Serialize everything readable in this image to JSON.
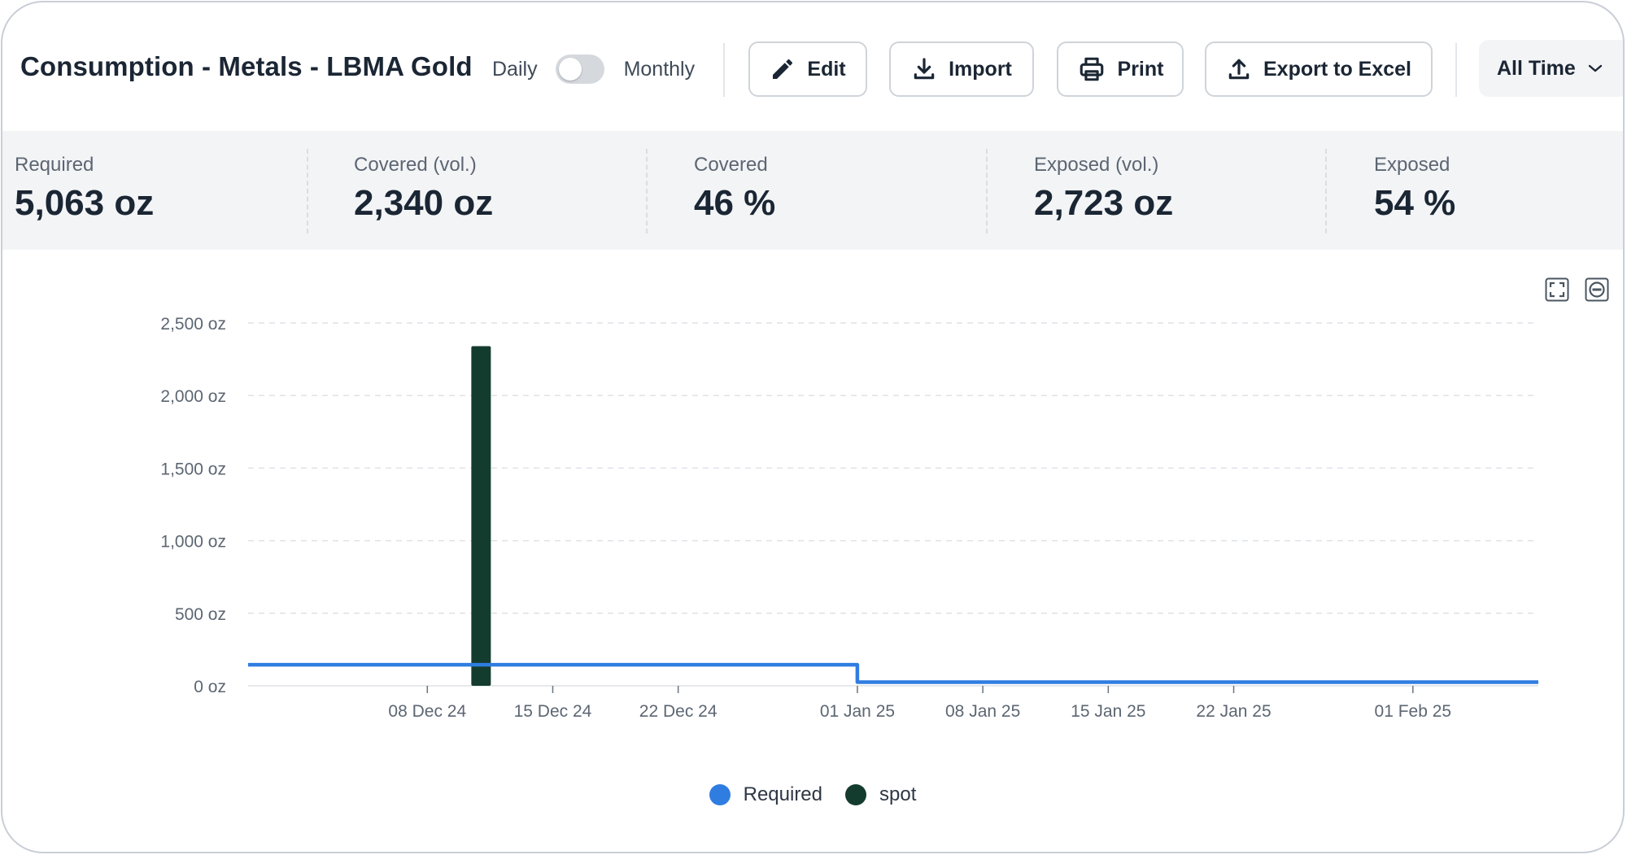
{
  "header": {
    "title": "Consumption - Metals - LBMA Gold",
    "toggle": {
      "left_label": "Daily",
      "right_label": "Monthly",
      "selected": "Daily"
    },
    "buttons": {
      "edit": "Edit",
      "import": "Import",
      "print": "Print",
      "export": "Export to Excel"
    },
    "range": {
      "selected": "All Time"
    }
  },
  "stats": [
    {
      "label": "Required",
      "value": "5,063 oz"
    },
    {
      "label": "Covered (vol.)",
      "value": "2,340 oz"
    },
    {
      "label": "Covered",
      "value": "46 %"
    },
    {
      "label": "Exposed (vol.)",
      "value": "2,723 oz"
    },
    {
      "label": "Exposed",
      "value": "54 %"
    }
  ],
  "icons": {
    "edit": "pencil-icon",
    "import": "download-icon",
    "print": "printer-icon",
    "export": "upload-icon",
    "range": "chevron-down-icon",
    "chart_fullscreen": "fullscreen-icon",
    "chart_reset": "zoom-reset-icon"
  },
  "colors": {
    "required": "#2f7de1",
    "spot": "#143c2e"
  },
  "chart_data": {
    "type": "line",
    "ylim": [
      0,
      2500
    ],
    "y_ticks": [
      0,
      500,
      1000,
      1500,
      2000,
      2500
    ],
    "y_tick_labels": [
      "0 oz",
      "500 oz",
      "1,000 oz",
      "1,500 oz",
      "2,000 oz",
      "2,500 oz"
    ],
    "x_range": [
      "2024-11-28",
      "2025-02-08"
    ],
    "x_ticks": [
      "2024-12-08",
      "2024-12-15",
      "2024-12-22",
      "2025-01-01",
      "2025-01-08",
      "2025-01-15",
      "2025-01-22",
      "2025-02-01"
    ],
    "x_tick_labels": [
      "08 Dec 24",
      "15 Dec 24",
      "22 Dec 24",
      "01 Jan 25",
      "08 Jan 25",
      "15 Jan 25",
      "22 Jan 25",
      "01 Feb 25"
    ],
    "grid": true,
    "legend": "bottom-center",
    "series": [
      {
        "name": "Required",
        "type": "step-line",
        "points": [
          {
            "x": "2024-11-28",
            "y": 145
          },
          {
            "x": "2025-01-01",
            "y": 145
          },
          {
            "x": "2025-01-01",
            "y": 25
          },
          {
            "x": "2025-02-08",
            "y": 25
          }
        ]
      },
      {
        "name": "spot",
        "type": "bar",
        "points": [
          {
            "x": "2024-12-11",
            "y": 2340
          }
        ]
      }
    ]
  }
}
